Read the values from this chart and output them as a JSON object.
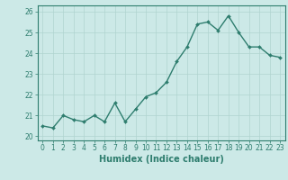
{
  "x": [
    0,
    1,
    2,
    3,
    4,
    5,
    6,
    7,
    8,
    9,
    10,
    11,
    12,
    13,
    14,
    15,
    16,
    17,
    18,
    19,
    20,
    21,
    22,
    23
  ],
  "y": [
    20.5,
    20.4,
    21.0,
    20.8,
    20.7,
    21.0,
    20.7,
    21.6,
    20.7,
    21.3,
    21.9,
    22.1,
    22.6,
    23.6,
    24.3,
    25.4,
    25.5,
    25.1,
    25.8,
    25.0,
    24.3,
    24.3,
    23.9,
    23.8
  ],
  "line_color": "#2e7d6e",
  "marker": "D",
  "marker_size": 2.0,
  "bg_color": "#cce9e7",
  "grid_color": "#b0d4d0",
  "xlabel": "Humidex (Indice chaleur)",
  "ylabel": "",
  "ylim": [
    19.8,
    26.3
  ],
  "xlim": [
    -0.5,
    23.5
  ],
  "yticks": [
    20,
    21,
    22,
    23,
    24,
    25,
    26
  ],
  "xticks": [
    0,
    1,
    2,
    3,
    4,
    5,
    6,
    7,
    8,
    9,
    10,
    11,
    12,
    13,
    14,
    15,
    16,
    17,
    18,
    19,
    20,
    21,
    22,
    23
  ],
  "tick_label_fontsize": 5.5,
  "xlabel_fontsize": 7,
  "line_width": 1.0,
  "spine_color": "#2e7d6e",
  "label_color": "#2e7d6e"
}
